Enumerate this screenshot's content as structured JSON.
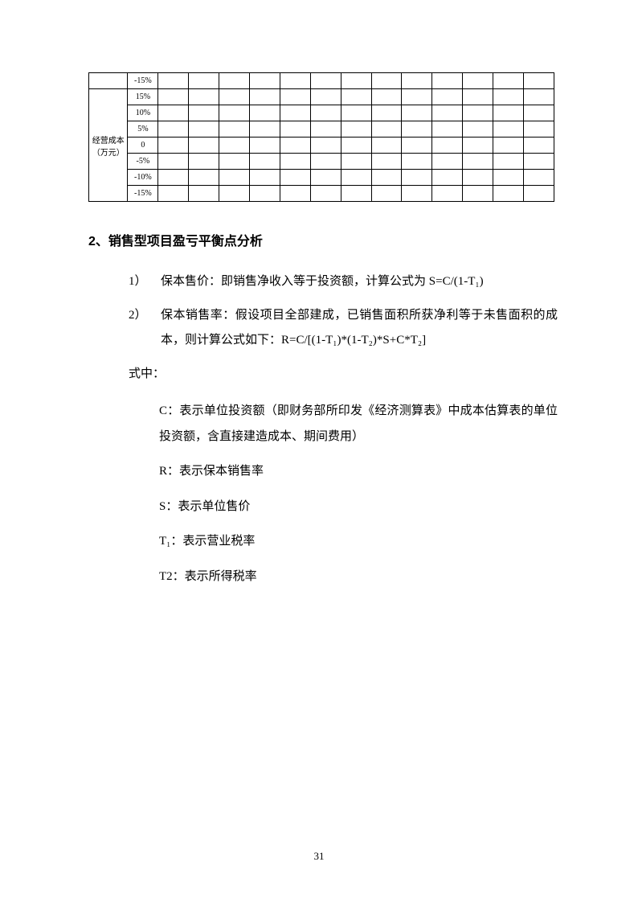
{
  "table": {
    "top_row_value": "-15%",
    "group_label": "经营成本（万元）",
    "rows": [
      "15%",
      "10%",
      "5%",
      "0",
      "-5%",
      "-10%",
      "-15%"
    ],
    "data_cols": 13,
    "border_color": "#000000",
    "font_size": 10
  },
  "heading": "2、销售型项目盈亏平衡点分析",
  "item1": {
    "num": "1）",
    "text_a": "保本售价：即销售净收入等于投资额，计算公式为",
    "text_b": "S=C/(1-T₁)"
  },
  "item2": {
    "num": "2）",
    "text_a": "保本销售率：假设项目全部建成，已销售面积所获净利等于未售面积的成本，则计算公式如下：R=C/[(1-T₁)*(1-T₂)*S+C*T₂]"
  },
  "where": "式中：",
  "var_c": "C：表示单位投资额（即财务部所印发《经济测算表》中成本估算表的单位投资额，含直接建造成本、期间费用）",
  "var_r": "R：表示保本销售率",
  "var_s": "S：表示单位售价",
  "var_t1": "T₁：表示营业税率",
  "var_t2": "T2：表示所得税率",
  "page_number": "31",
  "colors": {
    "text": "#000000",
    "background": "#ffffff"
  }
}
